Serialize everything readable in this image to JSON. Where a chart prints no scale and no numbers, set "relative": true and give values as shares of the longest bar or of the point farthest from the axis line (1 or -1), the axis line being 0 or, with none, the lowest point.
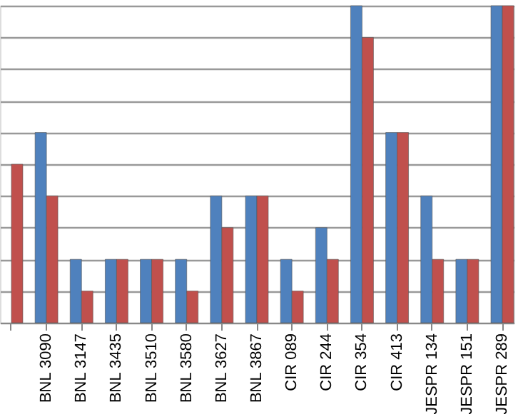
{
  "chart_data": {
    "type": "bar",
    "relative": true,
    "grid": "y",
    "legend": false,
    "categories": [
      null,
      "BNL 3090",
      "BNL 3147",
      "BNL 3435",
      "BNL 3510",
      "BNL 3580",
      "BNL 3627",
      "BNL 3867",
      "CIR 089",
      "CIR 244",
      "CIR 354",
      "CIR 413",
      "JESPR 134",
      "JESPR 151",
      "JESPR 289"
    ],
    "series": [
      {
        "color": "#4f81bd",
        "values": [
          null,
          0.6,
          0.2,
          0.2,
          0.2,
          0.2,
          0.4,
          0.4,
          0.2,
          0.3,
          1.0,
          0.6,
          0.4,
          0.2,
          1.0
        ]
      },
      {
        "color": "#c0504d",
        "values": [
          0.5,
          0.4,
          0.1,
          0.2,
          0.2,
          0.1,
          0.3,
          0.4,
          0.1,
          0.2,
          0.9,
          0.6,
          0.2,
          0.2,
          1.0
        ]
      }
    ]
  }
}
